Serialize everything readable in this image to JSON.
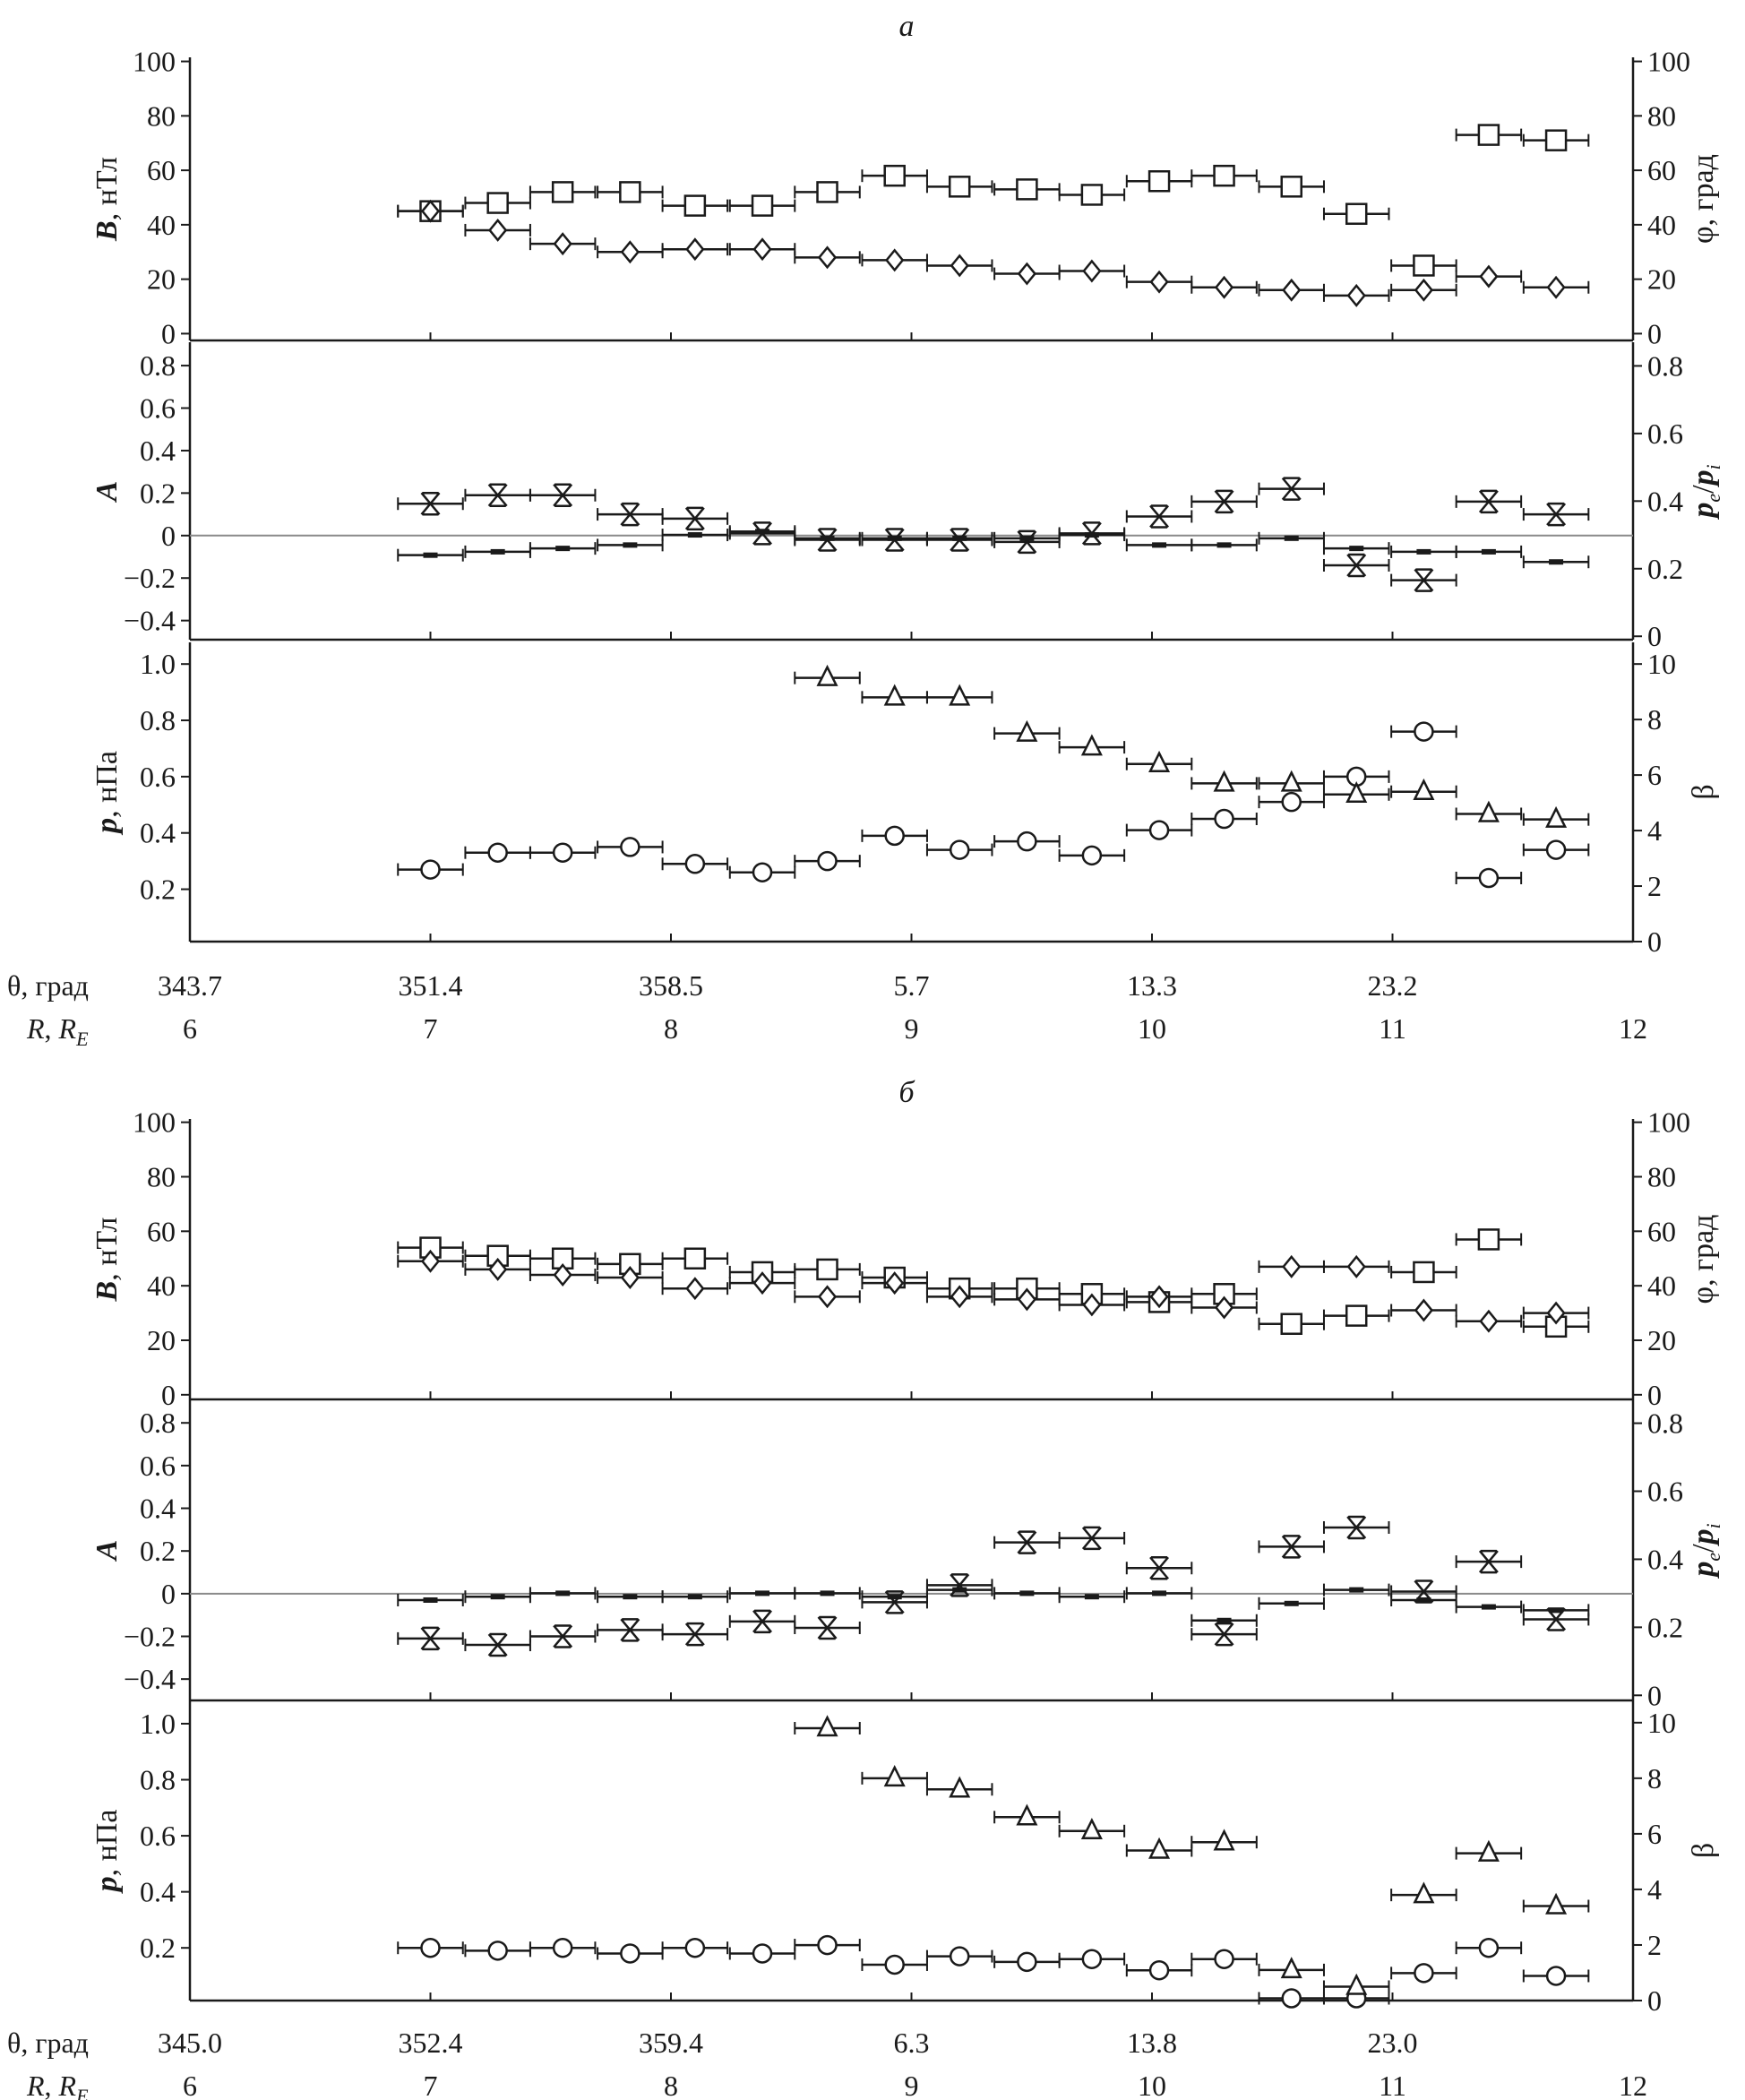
{
  "chart_data": [
    {
      "type": "scatter",
      "title": "а",
      "x_label_theta": "θ, град",
      "x_label_r": {
        "main": "R",
        "sep": ", ",
        "unit": "R",
        "unit_sub": "E"
      },
      "x_range": [
        6,
        12
      ],
      "theta_ticks": [
        "343.7",
        "351.4",
        "358.5",
        "5.7",
        "13.3",
        "23.2"
      ],
      "r_ticks": [
        "6",
        "7",
        "8",
        "9",
        "10",
        "11",
        "12"
      ],
      "x": [
        7.0,
        7.28,
        7.55,
        7.83,
        8.1,
        8.38,
        8.65,
        8.93,
        9.2,
        9.48,
        9.75,
        10.03,
        10.3,
        10.58,
        10.85,
        11.13,
        11.4,
        11.68
      ],
      "x_halfwidth": 0.135,
      "panels": [
        {
          "left_label": {
            "main": "B",
            "rest": ", нТл"
          },
          "right_label": {
            "text": "φ, град"
          },
          "left_ylim": [
            -2.5,
            101.5
          ],
          "right_ylim": [
            -2.5,
            101.5
          ],
          "left_ticks": [
            "0",
            "20",
            "40",
            "60",
            "80",
            "100"
          ],
          "right_ticks": [
            "0",
            "20",
            "40",
            "60",
            "80",
            "100"
          ],
          "zero_line": false,
          "series": [
            {
              "name": "B",
              "marker": "square",
              "axis": "left",
              "values": [
                45,
                48,
                52,
                52,
                47,
                47,
                52,
                58,
                54,
                53,
                51,
                56,
                58,
                54,
                44,
                25,
                73,
                71
              ]
            },
            {
              "name": "φ",
              "marker": "diamond",
              "axis": "right",
              "values": [
                45,
                38,
                33,
                30,
                31,
                31,
                28,
                27,
                25,
                22,
                23,
                19,
                17,
                16,
                14,
                16,
                21,
                17
              ]
            }
          ]
        },
        {
          "left_label": {
            "main": "A",
            "rest": ""
          },
          "right_label": {
            "pe_pi": [
              "p",
              "e",
              "/",
              "p",
              "i"
            ]
          },
          "left_ylim": [
            -0.49,
            0.91
          ],
          "right_ylim": [
            -0.01,
            0.87
          ],
          "left_ticks": [
            "−0.4",
            "−0.2",
            "0",
            "0.2",
            "0.4",
            "0.6",
            "0.8"
          ],
          "left_tick_values": [
            -0.4,
            -0.2,
            0,
            0.2,
            0.4,
            0.6,
            0.8
          ],
          "right_ticks": [
            "0",
            "0.2",
            "0.4",
            "0.6",
            "0.8"
          ],
          "zero_line": true,
          "series": [
            {
              "name": "A",
              "marker": "x",
              "axis": "left",
              "values": [
                0.15,
                0.19,
                0.19,
                0.1,
                0.08,
                0.01,
                -0.02,
                -0.02,
                -0.02,
                -0.03,
                0.01,
                0.09,
                0.16,
                0.22,
                -0.14,
                -0.21,
                0.16,
                0.1
              ]
            },
            {
              "name": "pe/pi",
              "marker": "dash",
              "axis": "right",
              "values": [
                0.24,
                0.25,
                0.26,
                0.27,
                0.3,
                0.31,
                0.29,
                0.29,
                0.29,
                0.29,
                0.3,
                0.27,
                0.27,
                0.29,
                0.26,
                0.25,
                0.25,
                0.22
              ]
            }
          ]
        },
        {
          "left_label": {
            "main": "p",
            "rest": ", нПа"
          },
          "right_label": {
            "text": "β"
          },
          "left_ylim": [
            0.014,
            1.077
          ],
          "right_ylim": [
            0,
            10.78
          ],
          "left_ticks": [
            "0.2",
            "0.4",
            "0.6",
            "0.8",
            "1.0"
          ],
          "right_ticks": [
            "0",
            "2",
            "4",
            "6",
            "8",
            "10"
          ],
          "zero_line": false,
          "series": [
            {
              "name": "p",
              "marker": "circle",
              "axis": "left",
              "values": [
                0.27,
                0.33,
                0.33,
                0.35,
                0.29,
                0.26,
                0.3,
                0.39,
                0.34,
                0.37,
                0.32,
                0.41,
                0.45,
                0.51,
                0.6,
                0.76,
                0.24,
                0.34
              ]
            },
            {
              "name": "β",
              "marker": "triangle",
              "axis": "right",
              "values": [
                null,
                null,
                null,
                null,
                null,
                null,
                9.5,
                8.8,
                8.8,
                7.5,
                7.0,
                6.4,
                5.7,
                5.7,
                5.3,
                5.4,
                4.6,
                4.4
              ]
            }
          ]
        }
      ]
    },
    {
      "type": "scatter",
      "title": "б",
      "x_label_theta": "θ, град",
      "x_label_r": {
        "main": "R",
        "sep": ", ",
        "unit": "R",
        "unit_sub": "E"
      },
      "x_range": [
        6,
        12
      ],
      "theta_ticks": [
        "345.0",
        "352.4",
        "359.4",
        "6.3",
        "13.8",
        "23.0"
      ],
      "r_ticks": [
        "6",
        "7",
        "8",
        "9",
        "10",
        "11",
        "12"
      ],
      "x": [
        7.0,
        7.28,
        7.55,
        7.83,
        8.1,
        8.38,
        8.65,
        8.93,
        9.2,
        9.48,
        9.75,
        10.03,
        10.3,
        10.58,
        10.85,
        11.13,
        11.4,
        11.68
      ],
      "x_halfwidth": 0.135,
      "panels": [
        {
          "left_label": {
            "main": "B",
            "rest": ", нТл"
          },
          "right_label": {
            "text": "φ, град"
          },
          "left_ylim": [
            -1.7,
            101.2
          ],
          "right_ylim": [
            -1.7,
            101.2
          ],
          "left_ticks": [
            "0",
            "20",
            "40",
            "60",
            "80",
            "100"
          ],
          "right_ticks": [
            "0",
            "20",
            "40",
            "60",
            "80",
            "100"
          ],
          "zero_line": false,
          "series": [
            {
              "name": "B",
              "marker": "square",
              "axis": "left",
              "values": [
                54,
                51,
                50,
                48,
                50,
                45,
                46,
                43,
                39,
                39,
                37,
                34,
                37,
                26,
                29,
                45,
                57,
                25
              ]
            },
            {
              "name": "φ",
              "marker": "diamond",
              "axis": "right",
              "values": [
                49,
                46,
                44,
                43,
                39,
                41,
                36,
                41,
                36,
                35,
                33,
                36,
                32,
                47,
                47,
                31,
                27,
                30
              ]
            }
          ]
        },
        {
          "left_label": {
            "main": "A",
            "rest": ""
          },
          "right_label": {
            "pe_pi": [
              "p",
              "e",
              "/",
              "p",
              "i"
            ]
          },
          "left_ylim": [
            -0.5,
            0.91
          ],
          "right_ylim": [
            -0.015,
            0.87
          ],
          "left_ticks": [
            "−0.4",
            "−0.2",
            "0",
            "0.2",
            "0.4",
            "0.6",
            "0.8"
          ],
          "left_tick_values": [
            -0.4,
            -0.2,
            0,
            0.2,
            0.4,
            0.6,
            0.8
          ],
          "right_ticks": [
            "0",
            "0.2",
            "0.4",
            "0.6",
            "0.8"
          ],
          "zero_line": true,
          "series": [
            {
              "name": "A",
              "marker": "x",
              "axis": "left",
              "values": [
                -0.21,
                -0.24,
                -0.2,
                -0.17,
                -0.19,
                -0.13,
                -0.16,
                -0.04,
                0.04,
                0.24,
                0.26,
                0.12,
                -0.19,
                0.22,
                0.31,
                0.01,
                0.15,
                -0.12
              ]
            },
            {
              "name": "pe/pi",
              "marker": "dash",
              "axis": "right",
              "values": [
                0.28,
                0.29,
                0.3,
                0.29,
                0.29,
                0.3,
                0.3,
                0.29,
                0.31,
                0.3,
                0.29,
                0.3,
                0.22,
                0.27,
                0.31,
                0.28,
                0.26,
                0.25
              ]
            }
          ]
        },
        {
          "left_label": {
            "main": "p",
            "rest": ", нПа"
          },
          "right_label": {
            "text": "β"
          },
          "left_ylim": [
            0.012,
            1.083
          ],
          "right_ylim": [
            0,
            10.8
          ],
          "left_ticks": [
            "0.2",
            "0.4",
            "0.6",
            "0.8",
            "1.0"
          ],
          "right_ticks": [
            "0",
            "2",
            "4",
            "6",
            "8",
            "10"
          ],
          "zero_line": false,
          "series": [
            {
              "name": "p",
              "marker": "circle",
              "axis": "left",
              "values": [
                0.2,
                0.19,
                0.2,
                0.18,
                0.2,
                0.18,
                0.21,
                0.14,
                0.17,
                0.15,
                0.16,
                0.12,
                0.16,
                0.02,
                0.02,
                0.11,
                0.2,
                0.1
              ]
            },
            {
              "name": "β",
              "marker": "triangle",
              "axis": "right",
              "values": [
                null,
                null,
                null,
                null,
                null,
                null,
                9.8,
                8.0,
                7.6,
                6.6,
                6.1,
                5.4,
                5.7,
                1.1,
                0.5,
                3.8,
                5.3,
                3.4
              ]
            }
          ]
        }
      ]
    }
  ]
}
